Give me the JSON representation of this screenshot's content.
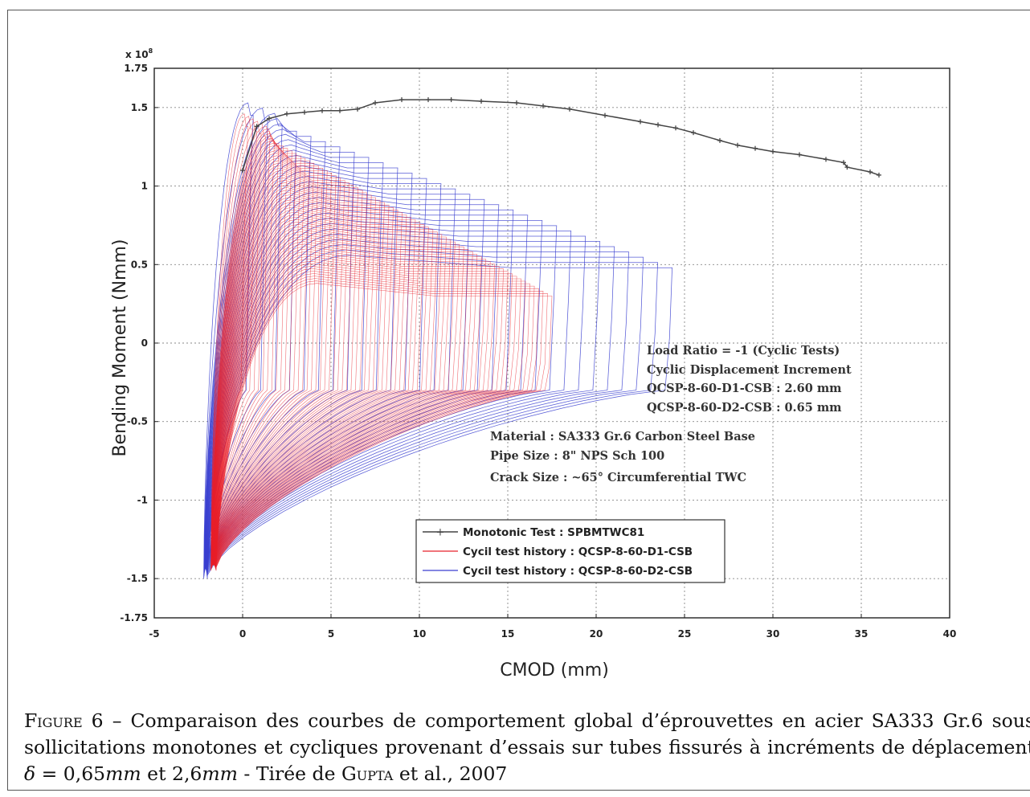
{
  "chart_data": {
    "type": "line",
    "xlabel": "CMOD (mm)",
    "ylabel": "Bending Moment (Nmm)",
    "y_multiplier": "x 10",
    "y_multiplier_exp": "8",
    "xlim": [
      -5,
      40
    ],
    "ylim": [
      -1.75,
      1.75
    ],
    "x_ticks": [
      "-5",
      "0",
      "5",
      "10",
      "15",
      "20",
      "25",
      "30",
      "35",
      "40"
    ],
    "y_ticks": [
      "1.75",
      "1.5",
      "1",
      "0.5",
      "0",
      "-0.5",
      "-1",
      "-1.5",
      "-1.75"
    ],
    "grid": true,
    "legend_position": "bottom-center",
    "series": [
      {
        "name": "Monotonic Test   : SPBMTWC81",
        "color": "#444444",
        "marker": "plus",
        "x": [
          0,
          0.8,
          1.5,
          2.5,
          3.5,
          4.5,
          5.5,
          6.5,
          7.5,
          9,
          10.5,
          11.8,
          13.5,
          15.5,
          17,
          18.5,
          20.5,
          22.5,
          23.5,
          24.5,
          25.5,
          27,
          28,
          29,
          30,
          31.5,
          33,
          34,
          34.2,
          35.5,
          36
        ],
        "y": [
          1.1,
          1.38,
          1.43,
          1.46,
          1.47,
          1.48,
          1.48,
          1.49,
          1.53,
          1.55,
          1.55,
          1.55,
          1.54,
          1.53,
          1.51,
          1.49,
          1.45,
          1.41,
          1.39,
          1.37,
          1.34,
          1.29,
          1.26,
          1.24,
          1.22,
          1.2,
          1.17,
          1.15,
          1.12,
          1.09,
          1.07
        ]
      },
      {
        "name": "Cycil test history : QCSP-8-60-D1-CSB",
        "color": "#e8202a",
        "increment_mm": 2.6
      },
      {
        "name": "Cycil test history : QCSP-8-60-D2-CSB",
        "color": "#3a3fd0",
        "increment_mm": 0.65
      }
    ],
    "annotations": [
      "Load Ratio = -1 (Cyclic Tests)",
      "Cyclic Displacement Increment",
      "QCSP-8-60-D1-CSB : 2.60 mm",
      "QCSP-8-60-D2-CSB : 0.65 mm",
      "Material    : SA333 Gr.6 Carbon Steel Base",
      "Pipe Size    : 8\" NPS Sch 100",
      "Crack Size : ~65° Circumferential TWC"
    ]
  },
  "caption": {
    "label": "Figure 6",
    "text_1": " – Comparaison des courbes de comportement global d’éprouvettes en acier SA333 Gr.6 sous sollicitations monotones et cycliques provenant d’essais sur tubes fissurés à incréments de déplacement ",
    "delta": "δ",
    "eq_1": " = 0,65",
    "unit_1": "mm",
    "and": " et 2,6",
    "unit_2": "mm",
    "text_2": " - Tirée de ",
    "author": "Gupta",
    "text_3": " et al., 2007"
  }
}
